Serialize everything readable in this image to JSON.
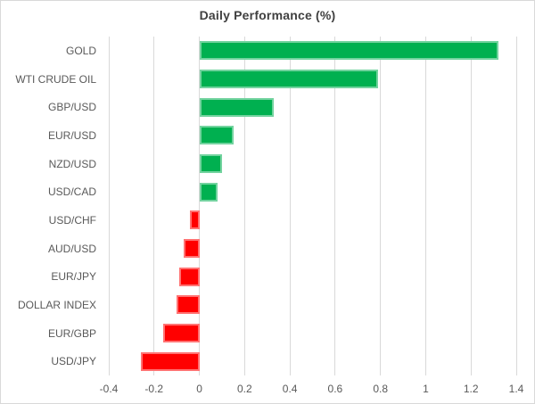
{
  "title": "Daily Performance (%)",
  "colors": {
    "positive": "#00B050",
    "negative": "#FF0000",
    "grid": "#D9D9D9",
    "title_text": "#404040",
    "label_text": "#595959",
    "border": "#D9D9D9",
    "background": "#FFFFFF"
  },
  "chart_data": {
    "type": "bar",
    "orientation": "horizontal",
    "title": "Daily Performance (%)",
    "categories": [
      "GOLD",
      "WTI CRUDE OIL",
      "GBP/USD",
      "EUR/USD",
      "NZD/USD",
      "USD/CAD",
      "USD/CHF",
      "AUD/USD",
      "EUR/JPY",
      "DOLLAR INDEX",
      "EUR/GBP",
      "USD/JPY"
    ],
    "values": [
      1.32,
      0.79,
      0.33,
      0.15,
      0.1,
      0.08,
      -0.04,
      -0.07,
      -0.09,
      -0.1,
      -0.16,
      -0.26
    ],
    "xlim": [
      -0.4,
      1.4
    ],
    "xticks": [
      -0.4,
      -0.2,
      0,
      0.2,
      0.4,
      0.6,
      0.8,
      1,
      1.2,
      1.4
    ],
    "xtick_labels": [
      "-0.4",
      "-0.2",
      "0",
      "0.2",
      "0.4",
      "0.6",
      "0.8",
      "1",
      "1.2",
      "1.4"
    ],
    "grid": true,
    "legend": false,
    "bar_color_rule": "green if positive, red if negative"
  }
}
